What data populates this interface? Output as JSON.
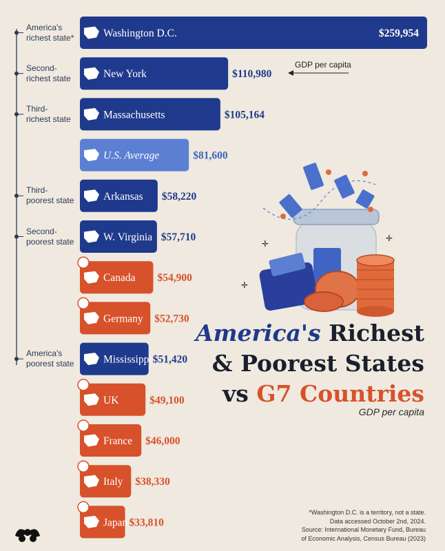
{
  "chart_data": {
    "type": "bar",
    "orientation": "horizontal",
    "categories": [
      "Washington D.C.",
      "New York",
      "Massachusetts",
      "U.S. Average",
      "Arkansas",
      "W. Virginia",
      "Canada",
      "Germany",
      "Mississippi",
      "UK",
      "France",
      "Italy",
      "Japan"
    ],
    "values": [
      259954,
      110980,
      105164,
      81600,
      58220,
      57710,
      54900,
      52730,
      51420,
      49100,
      46000,
      38330,
      33810
    ],
    "value_labels": [
      "$259,954",
      "$110,980",
      "$105,164",
      "$81,600",
      "$58,220",
      "$57,710",
      "$54,900",
      "$52,730",
      "$51,420",
      "$49,100",
      "$46,000",
      "$38,330",
      "$33,810"
    ],
    "groups": [
      "state",
      "state",
      "state",
      "average",
      "state",
      "state",
      "country",
      "country",
      "state",
      "country",
      "country",
      "country",
      "country"
    ],
    "row_labels": [
      [
        "America's",
        "richest state*"
      ],
      [
        "Second-",
        "richest state"
      ],
      [
        "Third-",
        "richest state"
      ],
      [],
      [
        "Third-",
        "poorest state"
      ],
      [
        "Second-",
        "poorest state"
      ],
      [],
      [],
      [
        "America's",
        "poorest state"
      ],
      [],
      [],
      [],
      []
    ],
    "annotation": "GDP per capita",
    "title": [
      "America's",
      "Richest",
      "& Poorest States",
      "vs",
      "G7 Countries"
    ],
    "subtitle": "GDP per capita",
    "colors": {
      "state": "#1f3a8c",
      "average": "#5b7fd3",
      "country": "#d7512b",
      "value_state": "#1f3a8c",
      "value_average": "#3d62c0",
      "value_country": "#d7512b"
    }
  },
  "footnote": [
    "*Washington D.C. is a territory, not a state.",
    "Data accessed October 2nd, 2024.",
    "Source: International Monetary Fund, Bureau",
    "of Economic Analysis, Census Bureau (2023)"
  ]
}
